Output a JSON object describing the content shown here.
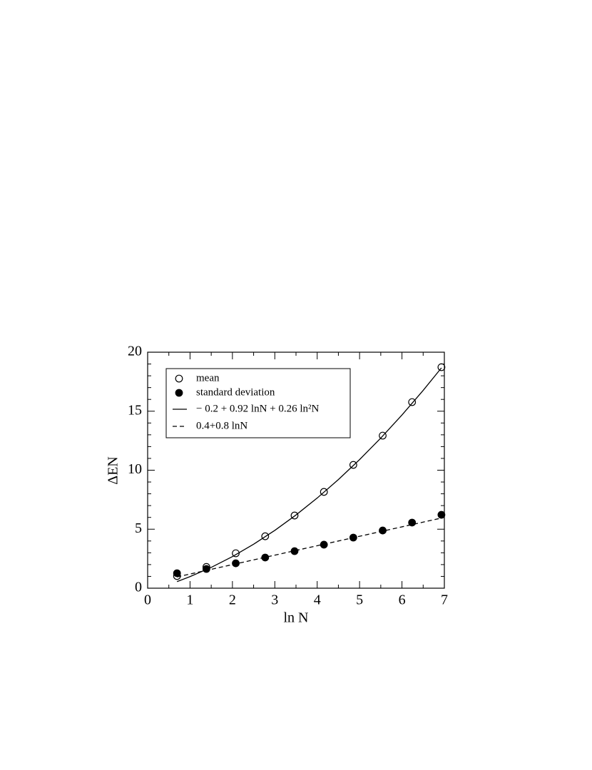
{
  "chart_data": {
    "type": "scatter",
    "x_label": "ln N",
    "y_label": "ΔEN",
    "xlim": [
      0,
      7
    ],
    "xticks": [
      0,
      1,
      2,
      3,
      4,
      5,
      6,
      7
    ],
    "ylim": [
      0,
      20
    ],
    "yticks": [
      0,
      5,
      10,
      15,
      20
    ],
    "grid": false,
    "legend": "upper left",
    "series": [
      {
        "name": "mean",
        "color": "#000000",
        "marker": "open",
        "x": [
          0.693,
          1.386,
          2.079,
          2.773,
          3.466,
          4.159,
          4.852,
          5.545,
          6.238,
          6.931
        ],
        "values": [
          1.03,
          1.8,
          2.96,
          4.4,
          6.16,
          8.16,
          10.45,
          12.93,
          15.77,
          18.73
        ]
      },
      {
        "name": "standard deviation",
        "color": "#000000",
        "marker": "filled",
        "x": [
          0.693,
          1.386,
          2.079,
          2.773,
          3.466,
          4.159,
          4.852,
          5.545,
          6.238,
          6.931
        ],
        "values": [
          1.27,
          1.63,
          2.11,
          2.6,
          3.14,
          3.69,
          4.29,
          4.89,
          5.56,
          6.22
        ]
      },
      {
        "name": "− 0.2 + 0.92 lnN + 0.26 ln²N",
        "color": "#000000",
        "line": "solid",
        "x": [
          0.693,
          1,
          1.5,
          2,
          2.5,
          3,
          3.5,
          4,
          4.5,
          5,
          5.5,
          6,
          6.5,
          6.931
        ],
        "values": [
          0.56,
          0.98,
          1.765,
          2.68,
          3.725,
          4.9,
          6.205,
          7.64,
          9.205,
          10.9,
          12.725,
          14.68,
          16.765,
          18.67
        ]
      },
      {
        "name": "0.4+0.8 lnN",
        "color": "#000000",
        "line": "dashed",
        "x": [
          0.693,
          6.931
        ],
        "values": [
          0.954,
          5.945
        ]
      }
    ]
  }
}
